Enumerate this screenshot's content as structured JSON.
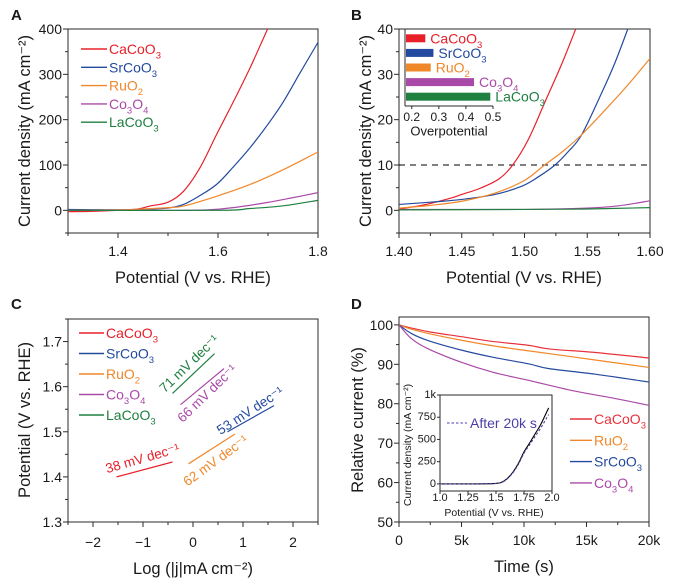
{
  "chart_data": [
    {
      "panel_label": "A",
      "type": "line",
      "title": "",
      "xlabel": "Potential (V vs. RHE)",
      "ylabel": "Current density (mA cm⁻²)",
      "xlim": [
        1.3,
        1.8
      ],
      "ylim": [
        -50,
        400
      ],
      "xticks": [
        1.4,
        1.6,
        1.8
      ],
      "xtick_labels": [
        "1.4",
        "1.6",
        "1.8"
      ],
      "xminor": [
        1.3,
        1.5,
        1.7
      ],
      "yticks": [
        0,
        100,
        200,
        300,
        400
      ],
      "ytick_labels": [
        "0",
        "100",
        "200",
        "300",
        "400"
      ],
      "yminor": [
        -50,
        50,
        150,
        250,
        350
      ],
      "grid": false,
      "legend": "top-left",
      "series": [
        {
          "name": "CaCoO3",
          "color": "#e8202a",
          "points": [
            [
              1.3,
              -3
            ],
            [
              1.35,
              -2
            ],
            [
              1.4,
              0
            ],
            [
              1.44,
              3
            ],
            [
              1.464,
              9.5
            ],
            [
              1.5,
              18
            ],
            [
              1.531,
              42
            ],
            [
              1.564,
              94
            ],
            [
              1.597,
              167
            ],
            [
              1.631,
              240
            ],
            [
              1.664,
              314
            ],
            [
              1.691,
              380
            ],
            [
              1.7,
              402
            ]
          ]
        },
        {
          "name": "SrCoO3",
          "color": "#234a9e",
          "points": [
            [
              1.3,
              2
            ],
            [
              1.4,
              1
            ],
            [
              1.45,
              2
            ],
            [
              1.5,
              5
            ],
            [
              1.531,
              13
            ],
            [
              1.56,
              30
            ],
            [
              1.597,
              57
            ],
            [
              1.63,
              95
            ],
            [
              1.664,
              138
            ],
            [
              1.7,
              190
            ],
            [
              1.731,
              240
            ],
            [
              1.764,
              303
            ],
            [
              1.797,
              365
            ],
            [
              1.8,
              370
            ]
          ]
        },
        {
          "name": "RuO2",
          "color": "#f0882a",
          "points": [
            [
              1.3,
              0
            ],
            [
              1.4,
              1
            ],
            [
              1.45,
              3
            ],
            [
              1.5,
              6
            ],
            [
              1.531,
              9.5
            ],
            [
              1.597,
              31
            ],
            [
              1.664,
              57
            ],
            [
              1.731,
              90
            ],
            [
              1.797,
              127
            ],
            [
              1.8,
              128
            ]
          ]
        },
        {
          "name": "Co3O4",
          "color": "#a94aa8",
          "points": [
            [
              1.3,
              0
            ],
            [
              1.5,
              0
            ],
            [
              1.58,
              1
            ],
            [
              1.631,
              6
            ],
            [
              1.697,
              17
            ],
            [
              1.75,
              28
            ],
            [
              1.8,
              39
            ]
          ]
        },
        {
          "name": "LaCoO3",
          "color": "#1f8040",
          "points": [
            [
              1.3,
              0
            ],
            [
              1.6,
              0
            ],
            [
              1.664,
              4
            ],
            [
              1.731,
              10
            ],
            [
              1.8,
              22
            ]
          ]
        }
      ]
    },
    {
      "panel_label": "B",
      "type": "line",
      "title": "",
      "xlabel": "Potential (V vs. RHE)",
      "ylabel": "Current density (mA cm⁻²)",
      "xlim": [
        1.4,
        1.6
      ],
      "ylim": [
        -5,
        40
      ],
      "xticks": [
        1.4,
        1.45,
        1.5,
        1.55,
        1.6
      ],
      "xtick_labels": [
        "1.40",
        "1.45",
        "1.50",
        "1.55",
        "1.60"
      ],
      "xminor": [
        1.425,
        1.475,
        1.525,
        1.575
      ],
      "yticks": [
        0,
        10,
        20,
        30,
        40
      ],
      "ytick_labels": [
        "0",
        "10",
        "20",
        "30",
        "40"
      ],
      "yminor": [
        -5,
        5,
        15,
        25,
        35
      ],
      "grid": false,
      "legend": "none",
      "reference_lines": [
        {
          "axis": "y",
          "value": 10,
          "style": "dashed",
          "color": "#000000"
        }
      ],
      "series": [
        {
          "name": "CaCoO3",
          "color": "#e8202a",
          "points": [
            [
              1.4,
              0.3
            ],
            [
              1.42,
              1.2
            ],
            [
              1.44,
              2.6
            ],
            [
              1.45,
              3.5
            ],
            [
              1.465,
              4.9
            ],
            [
              1.48,
              7.0
            ],
            [
              1.4906,
              10
            ],
            [
              1.503,
              15.6
            ],
            [
              1.516,
              23.7
            ],
            [
              1.53,
              32.5
            ],
            [
              1.5415,
              40.5
            ]
          ]
        },
        {
          "name": "SrCoO3",
          "color": "#234a9e",
          "points": [
            [
              1.4,
              1.3
            ],
            [
              1.425,
              1.8
            ],
            [
              1.45,
              2.4
            ],
            [
              1.4765,
              3.5
            ],
            [
              1.4976,
              5.3
            ],
            [
              1.51,
              7.2
            ],
            [
              1.5243,
              10
            ],
            [
              1.535,
              13
            ],
            [
              1.5456,
              16.7
            ],
            [
              1.5615,
              25.9
            ],
            [
              1.572,
              32.5
            ],
            [
              1.583,
              40.5
            ]
          ]
        },
        {
          "name": "RuO2",
          "color": "#f0882a",
          "points": [
            [
              1.4,
              0.5
            ],
            [
              1.425,
              1.1
            ],
            [
              1.45,
              2.0
            ],
            [
              1.4765,
              3.8
            ],
            [
              1.5,
              6.6
            ],
            [
              1.516,
              10
            ],
            [
              1.53,
              12.9
            ],
            [
              1.5456,
              16.7
            ],
            [
              1.5695,
              23.7
            ],
            [
              1.585,
              28.5
            ],
            [
              1.6,
              33.5
            ]
          ]
        },
        {
          "name": "Co3O4",
          "color": "#a94aa8",
          "points": [
            [
              1.4,
              0.2
            ],
            [
              1.5,
              0.2
            ],
            [
              1.55,
              0.5
            ],
            [
              1.575,
              1.0
            ],
            [
              1.6,
              2.1
            ]
          ]
        },
        {
          "name": "LaCoO3",
          "color": "#1f8040",
          "points": [
            [
              1.4,
              0.1
            ],
            [
              1.5,
              0.2
            ],
            [
              1.55,
              0.3
            ],
            [
              1.6,
              0.6
            ]
          ]
        }
      ],
      "inset": {
        "type": "bar",
        "orientation": "horizontal",
        "xlabel": "Overpotential",
        "xlim": [
          0.175,
          0.5
        ],
        "xticks": [
          0.2,
          0.3,
          0.4,
          0.5
        ],
        "xtick_labels": [
          "0.2",
          "0.3",
          "0.4",
          "0.5"
        ],
        "categories": [
          "CaCoO3",
          "SrCoO3",
          "RuO2",
          "Co3O4",
          "LaCoO3"
        ],
        "values": [
          0.25,
          0.28,
          0.27,
          0.43,
          0.49
        ],
        "colors": [
          "#e8202a",
          "#234a9e",
          "#f0882a",
          "#a94aa8",
          "#1f8040"
        ]
      }
    },
    {
      "panel_label": "C",
      "type": "line",
      "title": "",
      "xlabel": "Log (|j|mA cm⁻²)",
      "ylabel": "Potential (V vs. RHE)",
      "xlim": [
        -2.5,
        2.5
      ],
      "ylim": [
        1.3,
        1.75
      ],
      "xticks": [
        -2,
        -1,
        0,
        1,
        2
      ],
      "xtick_labels": [
        "−2",
        "−1",
        "0",
        "1",
        "2"
      ],
      "xminor": [
        -2.5,
        -1.5,
        -0.5,
        0.5,
        1.5,
        2.5
      ],
      "yticks": [
        1.3,
        1.4,
        1.5,
        1.6,
        1.7
      ],
      "ytick_labels": [
        "1.3",
        "1.4",
        "1.5",
        "1.6",
        "1.7"
      ],
      "yminor": [
        1.35,
        1.45,
        1.55,
        1.65,
        1.75
      ],
      "grid": false,
      "legend": "top-left",
      "series": [
        {
          "name": "CaCoO3",
          "color": "#e8202a",
          "points": [
            [
              -1.53,
              1.4
            ],
            [
              -0.41,
              1.433
            ]
          ]
        },
        {
          "name": "SrCoO3",
          "color": "#234a9e",
          "points": [
            [
              0.69,
              1.5
            ],
            [
              1.62,
              1.558
            ]
          ]
        },
        {
          "name": "RuO2",
          "color": "#f0882a",
          "points": [
            [
              -0.09,
              1.429
            ],
            [
              0.84,
              1.495
            ]
          ]
        },
        {
          "name": "Co3O4",
          "color": "#a94aa8",
          "points": [
            [
              -0.25,
              1.56
            ],
            [
              0.62,
              1.64
            ]
          ]
        },
        {
          "name": "LaCoO3",
          "color": "#1f8040",
          "points": [
            [
              -0.41,
              1.585
            ],
            [
              0.43,
              1.673
            ]
          ]
        }
      ],
      "annotations": [
        {
          "text": "38 mV dec⁻¹",
          "series": "CaCoO3",
          "color": "#e8202a",
          "x": -1.01,
          "y": 1.441
        },
        {
          "text": "53 mV dec⁻¹",
          "series": "SrCoO3",
          "color": "#234a9e",
          "x": 1.14,
          "y": 1.547
        },
        {
          "text": "62 mV dec⁻¹",
          "series": "RuO2",
          "color": "#f0882a",
          "x": 0.45,
          "y": 1.436
        },
        {
          "text": "66 mV dec⁻¹",
          "series": "Co3O4",
          "color": "#a94aa8",
          "x": 0.28,
          "y": 1.585
        },
        {
          "text": "71 mV dec⁻¹",
          "series": "LaCoO3",
          "color": "#1f8040",
          "x": -0.08,
          "y": 1.651
        }
      ]
    },
    {
      "panel_label": "D",
      "type": "line",
      "title": "",
      "xlabel": "Time (s)",
      "ylabel": "Relative current (%)",
      "xlim": [
        0,
        20000
      ],
      "ylim": [
        50,
        102
      ],
      "xticks": [
        0,
        5000,
        10000,
        15000,
        20000
      ],
      "xtick_labels": [
        "0",
        "5k",
        "10k",
        "15k",
        "20k"
      ],
      "xminor": [
        2500,
        7500,
        12500,
        17500
      ],
      "yticks": [
        50,
        60,
        70,
        80,
        90,
        100
      ],
      "ytick_labels": [
        "50",
        "60",
        "70",
        "80",
        "90",
        "100"
      ],
      "yminor": [
        55,
        65,
        75,
        85,
        95
      ],
      "grid": false,
      "legend": "center-right",
      "series": [
        {
          "name": "CaCoO3",
          "color": "#e8333d",
          "points": [
            [
              0,
              100
            ],
            [
              1000,
              99.2
            ],
            [
              2500,
              98.2
            ],
            [
              5000,
              97.0
            ],
            [
              7500,
              95.8
            ],
            [
              10400,
              94.8
            ],
            [
              12000,
              93.9
            ],
            [
              15700,
              93.0
            ],
            [
              20000,
              91.6
            ]
          ]
        },
        {
          "name": "RuO2",
          "color": "#f0882a",
          "points": [
            [
              0,
              100
            ],
            [
              1000,
              98.9
            ],
            [
              2500,
              97.7
            ],
            [
              5000,
              96.1
            ],
            [
              7500,
              94.7
            ],
            [
              10400,
              93.4
            ],
            [
              15700,
              91.1
            ],
            [
              20000,
              89.2
            ]
          ]
        },
        {
          "name": "SrCoO3",
          "color": "#234a9e",
          "points": [
            [
              0,
              100
            ],
            [
              1000,
              97.8
            ],
            [
              2350,
              96.0
            ],
            [
              5000,
              93.6
            ],
            [
              7500,
              91.8
            ],
            [
              10400,
              90.1
            ],
            [
              12000,
              88.9
            ],
            [
              15700,
              87.5
            ],
            [
              20000,
              85.5
            ]
          ]
        },
        {
          "name": "Co3O4",
          "color": "#a94aa8",
          "points": [
            [
              0,
              100
            ],
            [
              1000,
              96.5
            ],
            [
              2350,
              93.9
            ],
            [
              5000,
              90.5
            ],
            [
              7500,
              88.0
            ],
            [
              10400,
              85.9
            ],
            [
              13900,
              83.3
            ],
            [
              17000,
              81.5
            ],
            [
              20000,
              79.6
            ]
          ]
        }
      ],
      "inset": {
        "type": "line",
        "xlabel": "Potential (V vs. RHE)",
        "ylabel": "Current density (mA cm⁻²)",
        "xlim": [
          1.0,
          2.0
        ],
        "ylim": [
          -80,
          1000
        ],
        "xticks": [
          1.0,
          1.25,
          1.5,
          1.75,
          2.0
        ],
        "xtick_labels": [
          "1.0",
          "1.25",
          "1.5",
          "1.75",
          "2.0"
        ],
        "yticks": [
          0,
          250,
          500,
          750,
          1000
        ],
        "ytick_labels": [
          "0",
          "250",
          "500",
          "750",
          "1k"
        ],
        "legend": "top-left",
        "series": [
          {
            "name": "",
            "color": "#000000",
            "style": "solid",
            "points": [
              [
                1.0,
                0
              ],
              [
                1.3,
                0
              ],
              [
                1.45,
                2
              ],
              [
                1.5,
                5
              ],
              [
                1.55,
                18
              ],
              [
                1.6,
                60
              ],
              [
                1.65,
                130
              ],
              [
                1.7,
                230
              ],
              [
                1.75,
                360
              ],
              [
                1.8,
                460
              ],
              [
                1.85,
                565
              ],
              [
                1.9,
                670
              ],
              [
                1.97,
                855
              ]
            ]
          },
          {
            "name": "After 20k s",
            "color": "#4b3ea8",
            "style": "dotted",
            "points": [
              [
                1.0,
                0
              ],
              [
                1.3,
                0
              ],
              [
                1.45,
                2
              ],
              [
                1.5,
                5
              ],
              [
                1.55,
                16
              ],
              [
                1.6,
                56
              ],
              [
                1.65,
                124
              ],
              [
                1.7,
                220
              ],
              [
                1.75,
                345
              ],
              [
                1.8,
                440
              ],
              [
                1.85,
                535
              ],
              [
                1.9,
                630
              ],
              [
                1.97,
                780
              ]
            ]
          }
        ]
      }
    }
  ]
}
